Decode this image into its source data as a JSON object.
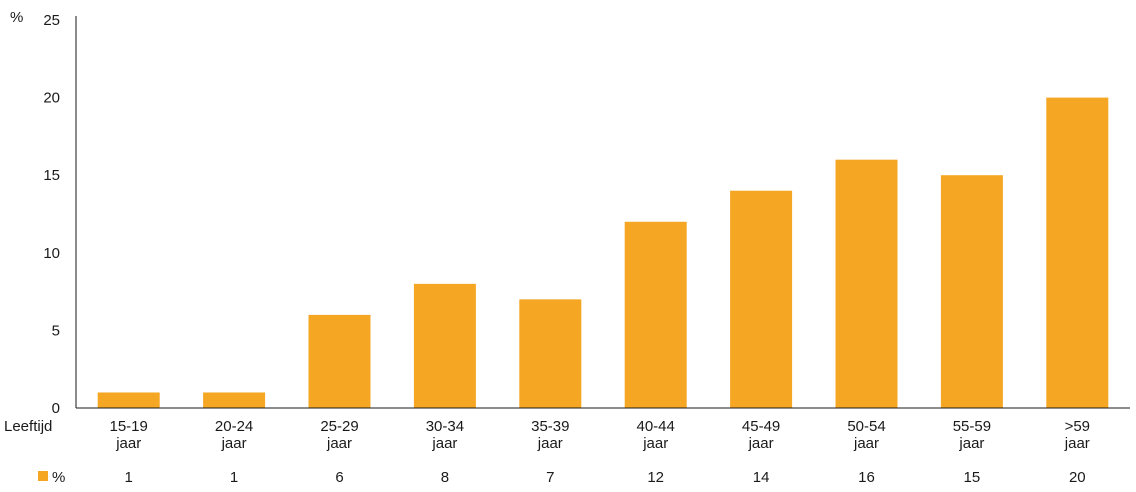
{
  "chart_data": {
    "type": "bar",
    "categories": [
      [
        "15-19",
        "jaar"
      ],
      [
        "20-24",
        "jaar"
      ],
      [
        "25-29",
        "jaar"
      ],
      [
        "30-34",
        "jaar"
      ],
      [
        "35-39",
        "jaar"
      ],
      [
        "40-44",
        "jaar"
      ],
      [
        "45-49",
        "jaar"
      ],
      [
        "50-54",
        "jaar"
      ],
      [
        "55-59",
        "jaar"
      ],
      [
        ">59",
        "jaar"
      ]
    ],
    "series": [
      {
        "name": "%",
        "values": [
          1,
          1,
          6,
          8,
          7,
          12,
          14,
          16,
          15,
          20
        ],
        "color": "#f5a623"
      }
    ],
    "ylabel": "%",
    "xlabel": "Leeftijd",
    "ylim": [
      0,
      25
    ],
    "yticks": [
      0,
      5,
      10,
      15,
      20,
      25
    ],
    "grid": false,
    "legend": "bottom-left data table"
  }
}
